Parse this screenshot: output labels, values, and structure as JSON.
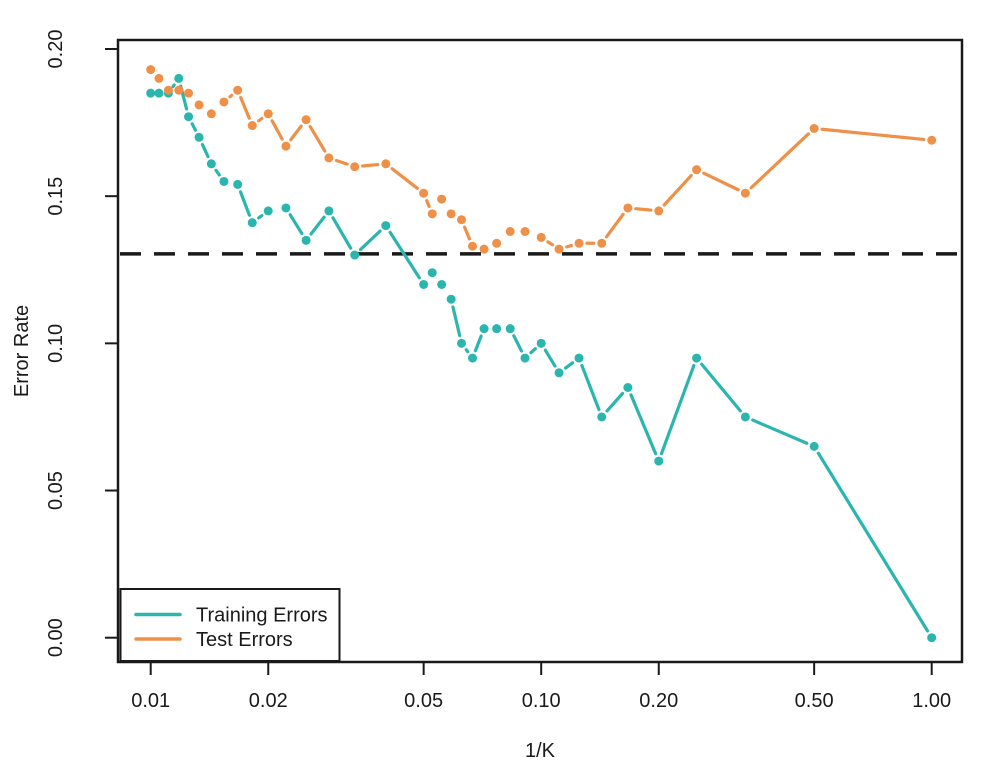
{
  "chart_data": {
    "type": "line",
    "title": "",
    "xlabel": "1/K",
    "ylabel": "Error Rate",
    "x_scale": "log",
    "xlim": [
      0.0088,
      1.1
    ],
    "ylim": [
      0.0,
      0.2
    ],
    "grid": false,
    "x_ticks": [
      {
        "value": 0.01,
        "label": "0.01"
      },
      {
        "value": 0.02,
        "label": "0.02"
      },
      {
        "value": 0.05,
        "label": "0.05"
      },
      {
        "value": 0.1,
        "label": "0.10"
      },
      {
        "value": 0.2,
        "label": "0.20"
      },
      {
        "value": 0.5,
        "label": "0.50"
      },
      {
        "value": 1.0,
        "label": "1.00"
      }
    ],
    "y_ticks": [
      {
        "value": 0.0,
        "label": "0.00"
      },
      {
        "value": 0.05,
        "label": "0.05"
      },
      {
        "value": 0.1,
        "label": "0.10"
      },
      {
        "value": 0.15,
        "label": "0.15"
      },
      {
        "value": 0.2,
        "label": "0.20"
      }
    ],
    "k_values": [
      100,
      95,
      90,
      85,
      80,
      75,
      70,
      65,
      60,
      55,
      50,
      45,
      40,
      35,
      30,
      25,
      20,
      19,
      18,
      17,
      16,
      15,
      14,
      13,
      12,
      11,
      10,
      9,
      8,
      7,
      6,
      5,
      4,
      3,
      2,
      1
    ],
    "x_one_over_k": [
      0.01,
      0.0105,
      0.0111,
      0.0118,
      0.0125,
      0.0133,
      0.0143,
      0.0154,
      0.0167,
      0.0182,
      0.02,
      0.0222,
      0.025,
      0.0286,
      0.0333,
      0.04,
      0.05,
      0.0526,
      0.0556,
      0.0588,
      0.0625,
      0.0667,
      0.0714,
      0.0769,
      0.0833,
      0.0909,
      0.1,
      0.1111,
      0.125,
      0.1429,
      0.1667,
      0.2,
      0.25,
      0.3333,
      0.5,
      1.0
    ],
    "series": [
      {
        "name": "Training Errors",
        "color": "#2ab5ae",
        "values": [
          0.185,
          0.185,
          0.185,
          0.19,
          0.177,
          0.17,
          0.161,
          0.155,
          0.154,
          0.141,
          0.145,
          0.146,
          0.135,
          0.145,
          0.13,
          0.14,
          0.12,
          0.124,
          0.12,
          0.115,
          0.1,
          0.095,
          0.105,
          0.105,
          0.105,
          0.095,
          0.1,
          0.09,
          0.095,
          0.075,
          0.085,
          0.06,
          0.095,
          0.075,
          0.065,
          0.0
        ]
      },
      {
        "name": "Test Errors",
        "color": "#ee9048",
        "values": [
          0.193,
          0.19,
          0.186,
          0.186,
          0.185,
          0.181,
          0.178,
          0.182,
          0.186,
          0.174,
          0.178,
          0.167,
          0.176,
          0.163,
          0.16,
          0.161,
          0.151,
          0.144,
          0.149,
          0.144,
          0.142,
          0.133,
          0.132,
          0.134,
          0.138,
          0.138,
          0.136,
          0.132,
          0.134,
          0.134,
          0.146,
          0.145,
          0.159,
          0.151,
          0.173,
          0.169
        ]
      }
    ],
    "reference_line": {
      "y": 0.1304,
      "style": "dashed",
      "color": "#1a1a1a"
    },
    "legend": {
      "position": "bottom-left",
      "entries": [
        {
          "label": "Training Errors",
          "color": "#2ab5ae"
        },
        {
          "label": "Test Errors",
          "color": "#ee9048"
        }
      ]
    }
  },
  "colors": {
    "background": "#ffffff",
    "axis": "#1a1a1a",
    "training": "#2ab5ae",
    "test": "#ee9048"
  }
}
